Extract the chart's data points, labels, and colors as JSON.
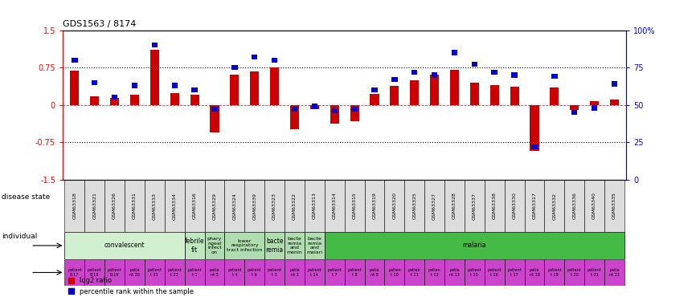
{
  "title": "GDS1563 / 8174",
  "samples": [
    "GSM63318",
    "GSM63321",
    "GSM63326",
    "GSM63331",
    "GSM63333",
    "GSM63334",
    "GSM63316",
    "GSM63329",
    "GSM63324",
    "GSM63339",
    "GSM63323",
    "GSM63322",
    "GSM63313",
    "GSM63314",
    "GSM63315",
    "GSM63319",
    "GSM63320",
    "GSM63325",
    "GSM63327",
    "GSM63328",
    "GSM63337",
    "GSM63338",
    "GSM63330",
    "GSM63317",
    "GSM63332",
    "GSM63336",
    "GSM63340",
    "GSM63335"
  ],
  "log2_ratio": [
    0.68,
    0.18,
    0.14,
    0.21,
    1.1,
    0.23,
    0.2,
    -0.55,
    0.6,
    0.67,
    0.75,
    -0.48,
    -0.08,
    -0.38,
    -0.33,
    0.22,
    0.38,
    0.5,
    0.6,
    0.7,
    0.45,
    0.4,
    0.37,
    -0.93,
    0.35,
    -0.1,
    0.08,
    0.1
  ],
  "percentile_rank": [
    80,
    65,
    55,
    63,
    90,
    63,
    60,
    47,
    75,
    82,
    80,
    47,
    49,
    46,
    47,
    60,
    67,
    72,
    70,
    85,
    77,
    72,
    70,
    22,
    69,
    45,
    48,
    64
  ],
  "disease_groups": [
    {
      "label": "convalescent",
      "start": 0,
      "end": 6,
      "color": "#d0f0d0"
    },
    {
      "label": "febrile\nfit",
      "start": 6,
      "end": 7,
      "color": "#c0e8c0"
    },
    {
      "label": "phary\nngeal\ninfect\non",
      "start": 7,
      "end": 8,
      "color": "#b0ddb0"
    },
    {
      "label": "lower\nrespiratory\ntract infection",
      "start": 8,
      "end": 10,
      "color": "#b0ddb0"
    },
    {
      "label": "bacte\nremia",
      "start": 10,
      "end": 11,
      "color": "#b0ddb0"
    },
    {
      "label": "bacte\nremia\nand\nmenin",
      "start": 11,
      "end": 12,
      "color": "#b0ddb0"
    },
    {
      "label": "bacte\nremia\nand\nmalari",
      "start": 12,
      "end": 13,
      "color": "#b0ddb0"
    },
    {
      "label": "malaria",
      "start": 13,
      "end": 28,
      "color": "#44bb44"
    }
  ],
  "individual_labels": [
    "patient\nt117",
    "patient\nt118",
    "patient\nt119",
    "patie\nnt 20",
    "patient\nt 21",
    "patient\nt 22",
    "patient\nt 1",
    "patie\nnt 5",
    "patient\nt 4",
    "patient\nt 6",
    "patient\nt 3",
    "patie\nnt 2",
    "patient\nt 14",
    "patient\nt 7",
    "patient\nt 8",
    "patie\nnt 9",
    "patien\nt 10",
    "patien\nt 11",
    "patien\nt 12",
    "patie\nnt 13",
    "patient\nt 15",
    "patient\nt 16",
    "patient\nt 17",
    "patie\nnt 18",
    "patient\nt 19",
    "patient\nt 20",
    "patient\nt 21",
    "patie\nnt 22"
  ],
  "ylim": [
    -1.5,
    1.5
  ],
  "yticks_left": [
    -1.5,
    -0.75,
    0,
    0.75,
    1.5
  ],
  "yticks_right": [
    0,
    25,
    50,
    75,
    100
  ],
  "dotted_lines": [
    -0.75,
    0.75
  ],
  "bar_color_red": "#cc0000",
  "bar_color_blue": "#0000cc",
  "indiv_color": "#cc44cc",
  "bg_color": "#ffffff"
}
